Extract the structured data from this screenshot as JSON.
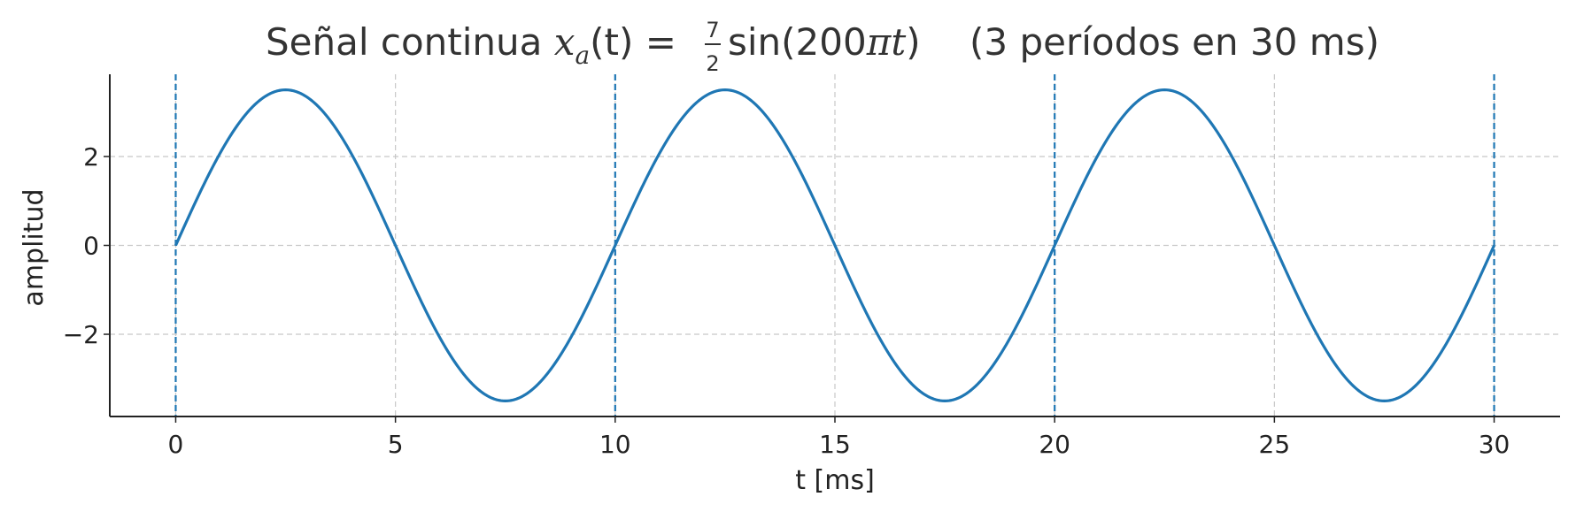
{
  "chart_data": {
    "type": "line",
    "title": {
      "prefix": "Señal continua ",
      "func_var": "x",
      "func_sub": "a",
      "func_arg": "(t)",
      "equals": " = ",
      "frac_num": "7",
      "frac_den": "2",
      "sin_part": "sin(200",
      "pi_t": "πt",
      "close_paren": ")",
      "suffix": "(3 períodos en 30 ms)"
    },
    "xlabel": "t [ms]",
    "ylabel": "amplitud",
    "xlim": [
      -1.5,
      31.5
    ],
    "ylim": [
      -3.85,
      3.85
    ],
    "xticks": [
      0,
      5,
      10,
      15,
      20,
      25,
      30
    ],
    "yticks": [
      -2,
      0,
      2
    ],
    "ytick_labels": [
      "−2",
      "0",
      "2"
    ],
    "grid": true,
    "series": [
      {
        "function": "3.5·sin(200πt), t in seconds",
        "amplitude": 3.5,
        "frequency_hz": 100,
        "t_start_ms": 0,
        "t_end_ms": 30,
        "color": "#1f77b4"
      }
    ],
    "vlines": {
      "x": [
        0,
        10,
        20,
        30
      ],
      "style": "dashed",
      "color": "#1f77b4"
    },
    "colors": {
      "line": "#1f77b4",
      "grid": "#c8c8c8",
      "axis": "#222222",
      "title": "#333333"
    }
  }
}
